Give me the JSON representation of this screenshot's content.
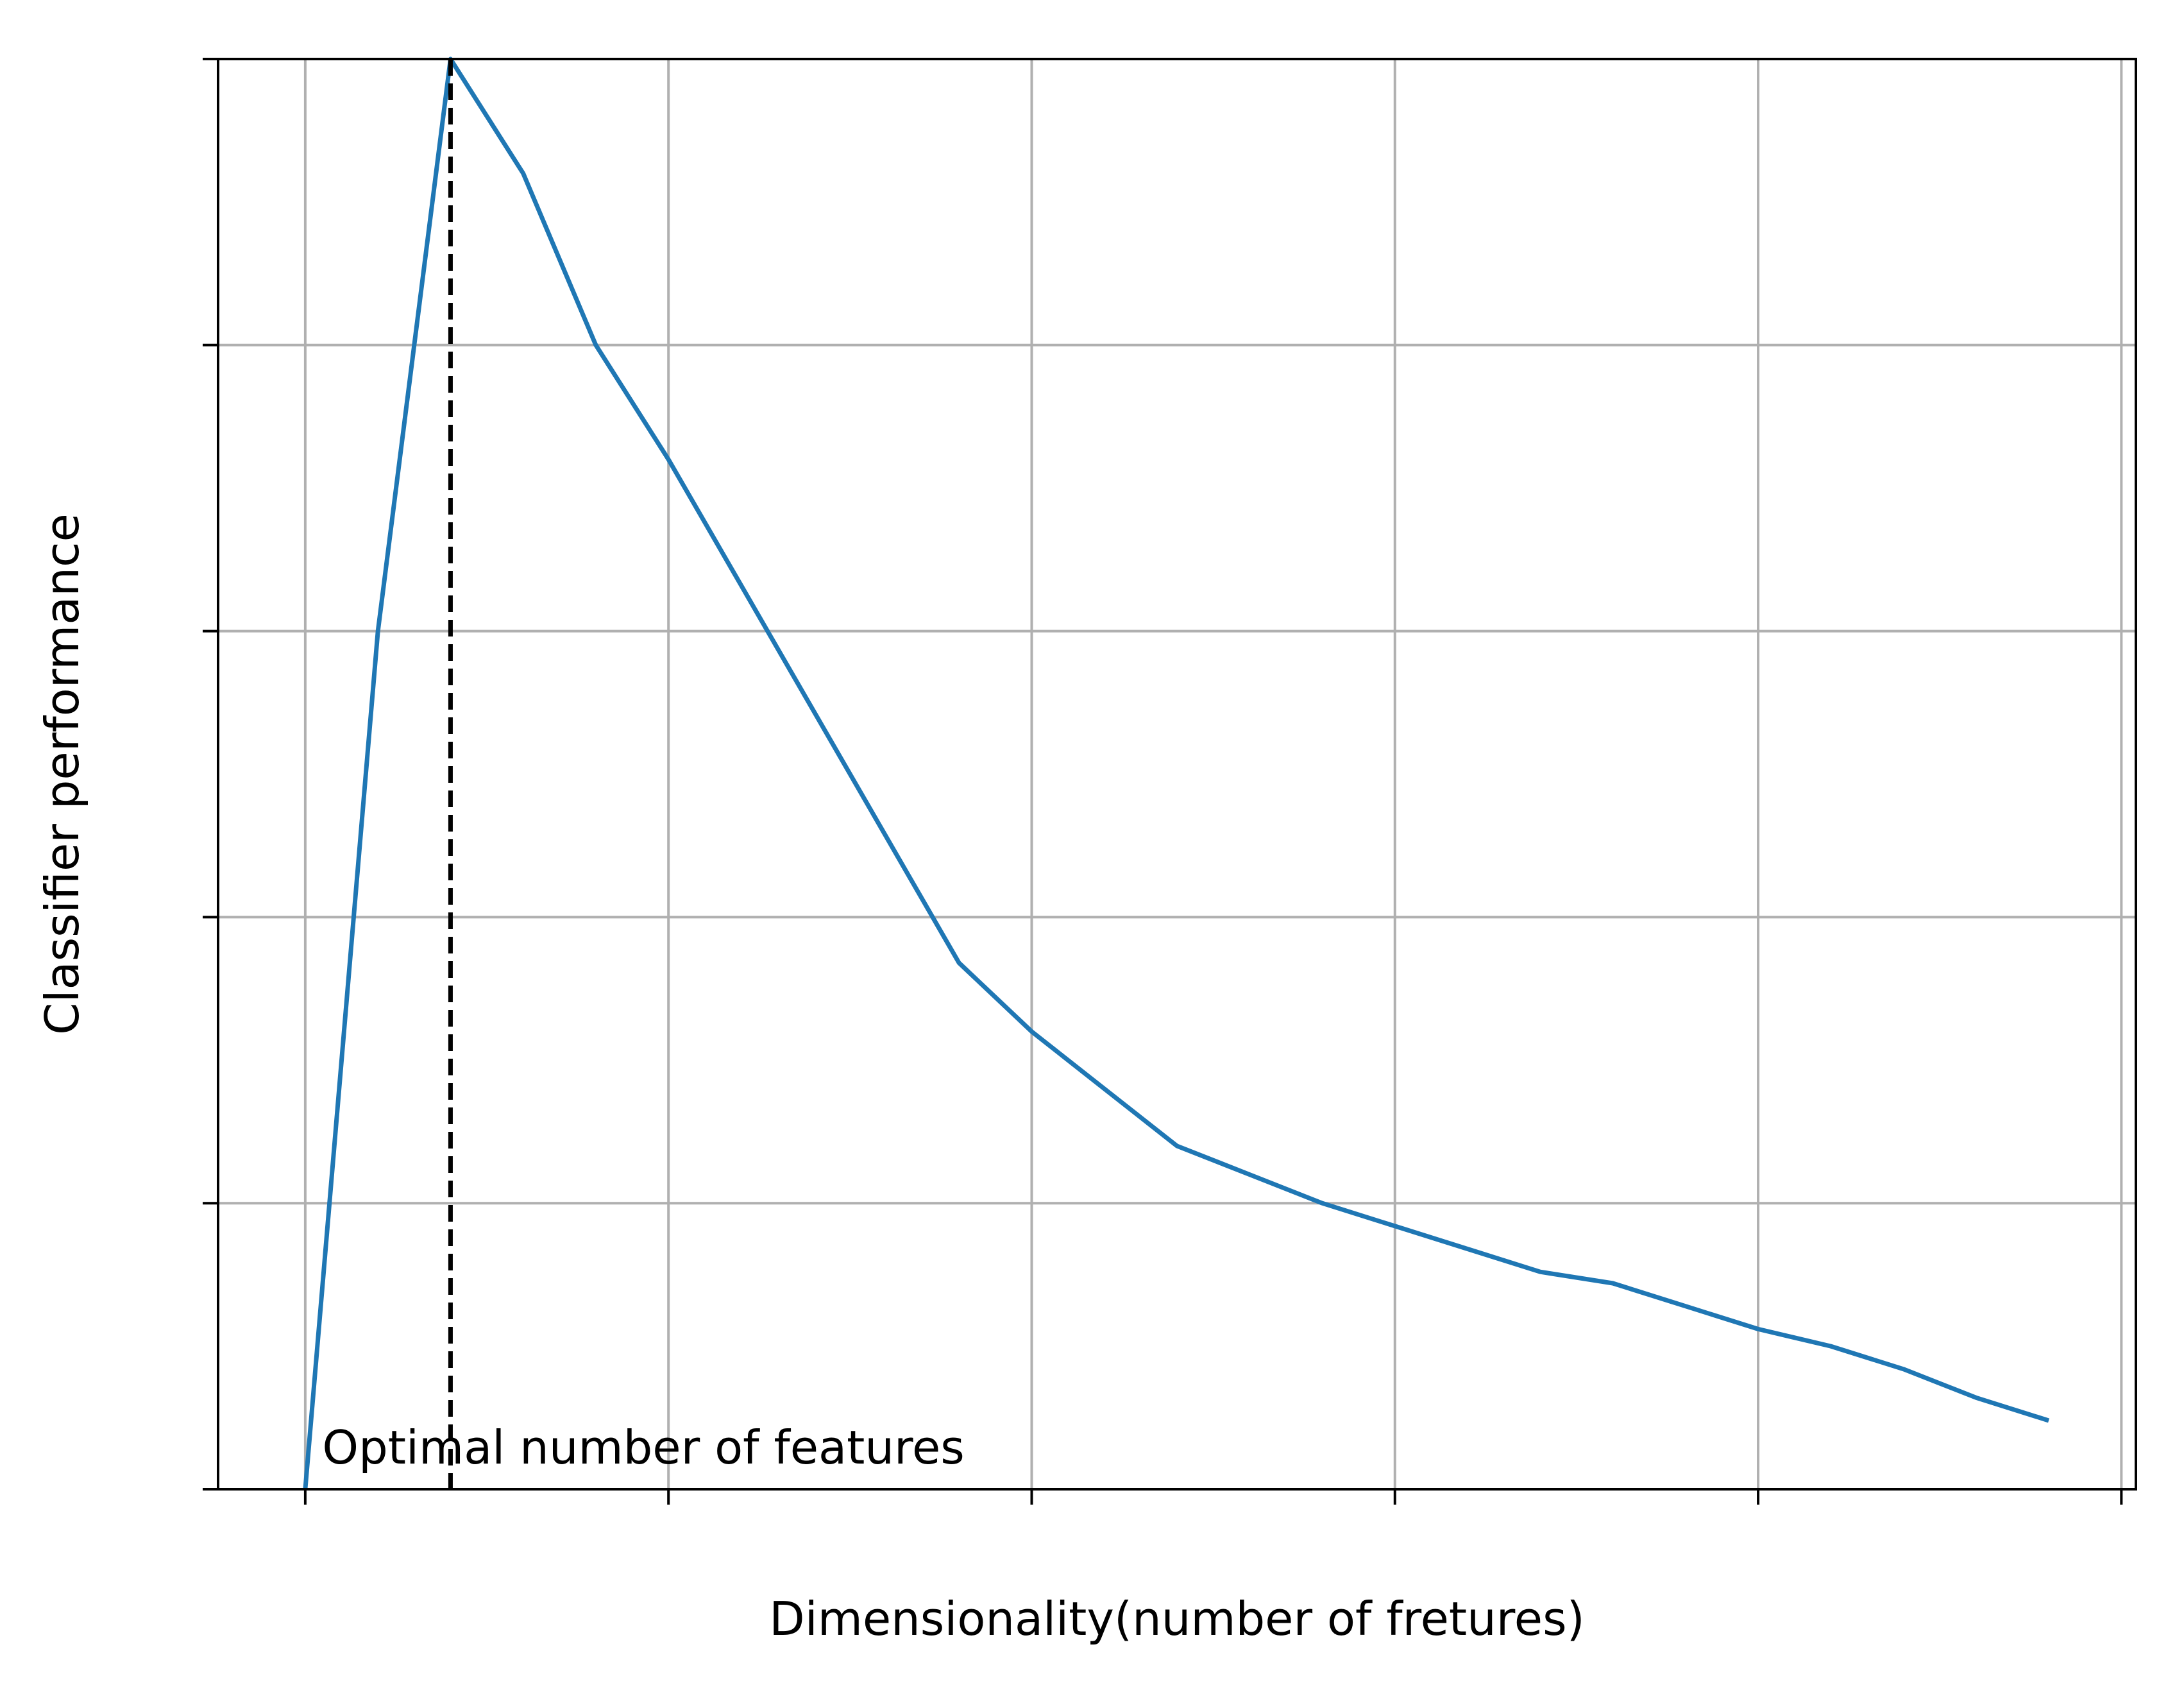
{
  "chart_data": {
    "type": "line",
    "title": "",
    "xlabel": "Dimensionality(number of fretures)",
    "ylabel": "Classifier performance",
    "xlim": [
      -0.6,
      12.6
    ],
    "ylim": [
      0,
      25
    ],
    "xticks": [
      0,
      2.5,
      5,
      7.5,
      10,
      12.5
    ],
    "yticks": [
      0,
      5,
      10,
      15,
      20,
      25
    ],
    "tick_labels_visible": false,
    "grid": true,
    "legend": "none",
    "series": [
      {
        "color": "#1f77b4",
        "x": [
          0,
          0.5,
          1,
          1.5,
          2,
          2.5,
          3,
          3.5,
          4,
          4.5,
          5,
          5.5,
          6,
          6.5,
          7,
          7.5,
          8,
          8.5,
          9,
          9.5,
          10,
          10.5,
          11,
          11.5,
          12
        ],
        "y": [
          0,
          15,
          25,
          23,
          20,
          18,
          15.8,
          13.6,
          11.4,
          9.2,
          8,
          7,
          6,
          5.5,
          5,
          4.6,
          4.2,
          3.8,
          3.6,
          3.2,
          2.8,
          2.5,
          2.1,
          1.6,
          1.2
        ]
      }
    ],
    "vline": {
      "x": 1,
      "style": "dashed",
      "color": "#000000"
    },
    "annotations": [
      {
        "text": "Optimal number of features",
        "x": 1,
        "y": 0
      }
    ]
  }
}
